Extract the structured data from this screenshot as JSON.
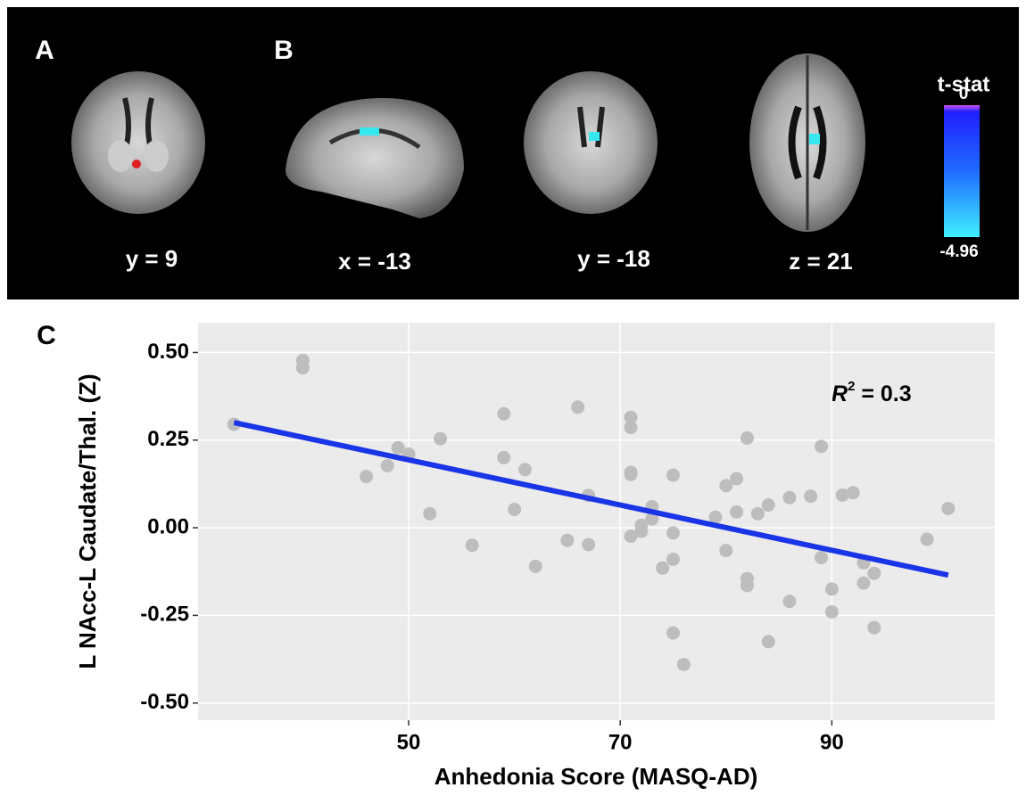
{
  "panel_labels": [
    "A",
    "B",
    "C"
  ],
  "brain_panel": {
    "slices": [
      "y = 9",
      "x = -13",
      "y = -18",
      "z = 21"
    ],
    "colorbar": {
      "title": "t-stat",
      "max": 0,
      "min": -4.96
    }
  },
  "chart_data": {
    "type": "scatter",
    "x_label": "Anhedonia Score (MASQ-AD)",
    "y_label": "L NAcc-L Caudate/Thal. (Z)",
    "annotation": {
      "symbol": "R",
      "superscript": "2",
      "text": " = 0.3"
    },
    "color": "#bdbdbd",
    "x": [
      33.5,
      40,
      40,
      46,
      48,
      49,
      50,
      52,
      53,
      56,
      59,
      59,
      60,
      61,
      62,
      65,
      66,
      67,
      67,
      71,
      71,
      71,
      71,
      71,
      72,
      72,
      73,
      73,
      74,
      75,
      75,
      75,
      75,
      76,
      79,
      80,
      80,
      81,
      81,
      82,
      82,
      82,
      83,
      84,
      84,
      86,
      86,
      88,
      89,
      89,
      90,
      90,
      91,
      92,
      93,
      93,
      94,
      94,
      99,
      101
    ],
    "y": [
      0.295,
      0.477,
      0.456,
      0.146,
      0.177,
      0.228,
      0.21,
      0.04,
      0.254,
      -0.05,
      0.325,
      0.2,
      0.052,
      0.166,
      -0.11,
      -0.036,
      0.344,
      0.092,
      -0.048,
      0.315,
      0.286,
      0.158,
      0.152,
      -0.024,
      0.007,
      -0.01,
      0.06,
      0.025,
      -0.115,
      0.15,
      -0.015,
      -0.09,
      -0.3,
      -0.39,
      0.03,
      0.12,
      -0.065,
      0.14,
      0.045,
      0.256,
      -0.145,
      -0.165,
      0.04,
      0.065,
      -0.325,
      0.086,
      -0.21,
      0.09,
      0.232,
      -0.085,
      -0.175,
      -0.24,
      0.093,
      0.1,
      -0.1,
      -0.158,
      -0.13,
      -0.285,
      -0.033,
      0.055
    ],
    "trend": {
      "x": [
        33.5,
        101
      ],
      "y": [
        0.3,
        -0.135
      ],
      "color": "#1a34e8"
    },
    "xlim": [
      30.1,
      105.4
    ],
    "ylim": [
      -0.549,
      0.585
    ],
    "xticks": [
      50,
      70,
      90
    ],
    "yticks": [
      {
        "value": 0.5,
        "label": "0.50"
      },
      {
        "value": 0.25,
        "label": "0.25"
      },
      {
        "value": 0,
        "label": "0.00"
      },
      {
        "value": -0.25,
        "label": "-0.25"
      },
      {
        "value": -0.5,
        "label": "-0.50"
      }
    ],
    "grid": true
  }
}
